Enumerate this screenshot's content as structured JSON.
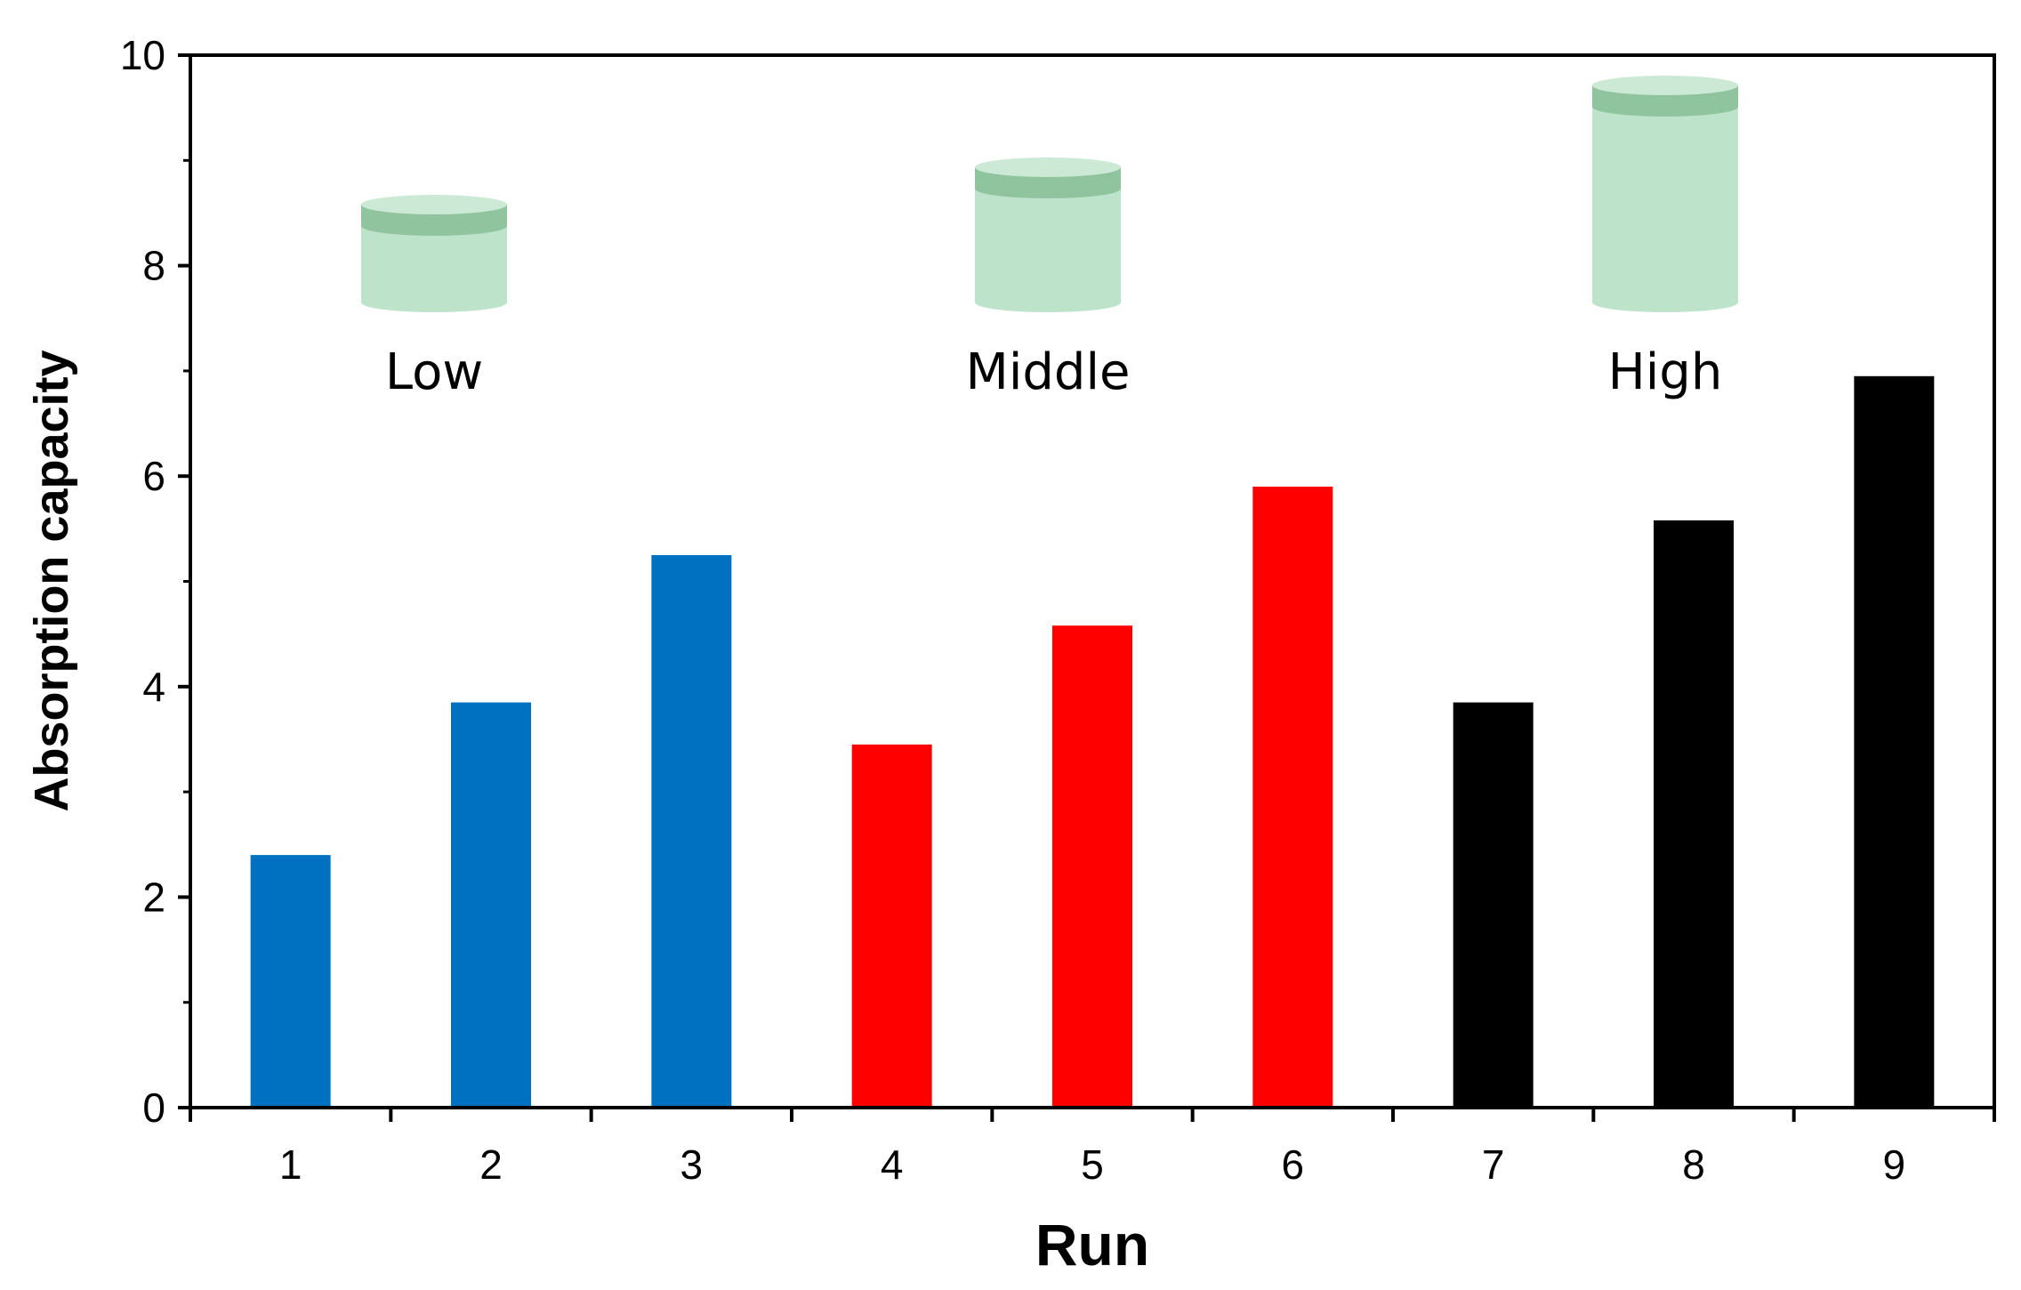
{
  "chart_data": {
    "type": "bar",
    "xlabel": "Run",
    "ylabel": "Absorption capacity",
    "ylim": [
      0,
      10
    ],
    "yticks": [
      0,
      2,
      4,
      6,
      8,
      10
    ],
    "grid": false,
    "categories": [
      "1",
      "2",
      "3",
      "4",
      "5",
      "6",
      "7",
      "8",
      "9"
    ],
    "values": [
      2.4,
      3.85,
      5.25,
      3.45,
      4.58,
      5.9,
      3.85,
      5.58,
      6.95
    ],
    "colors": [
      "#0070c0",
      "#0070c0",
      "#0070c0",
      "#ff0000",
      "#ff0000",
      "#ff0000",
      "#000000",
      "#000000",
      "#000000"
    ],
    "annotations": [
      {
        "label": "Low",
        "icon": "short-cylinder-icon",
        "icon_height": "low"
      },
      {
        "label": "Middle",
        "icon": "medium-cylinder-icon",
        "icon_height": "middle"
      },
      {
        "label": "High",
        "icon": "tall-cylinder-icon",
        "icon_height": "high"
      }
    ],
    "icon_colors": {
      "body": "#bde3cb",
      "band": "#8fc49f",
      "top": "#cce9d6"
    }
  }
}
